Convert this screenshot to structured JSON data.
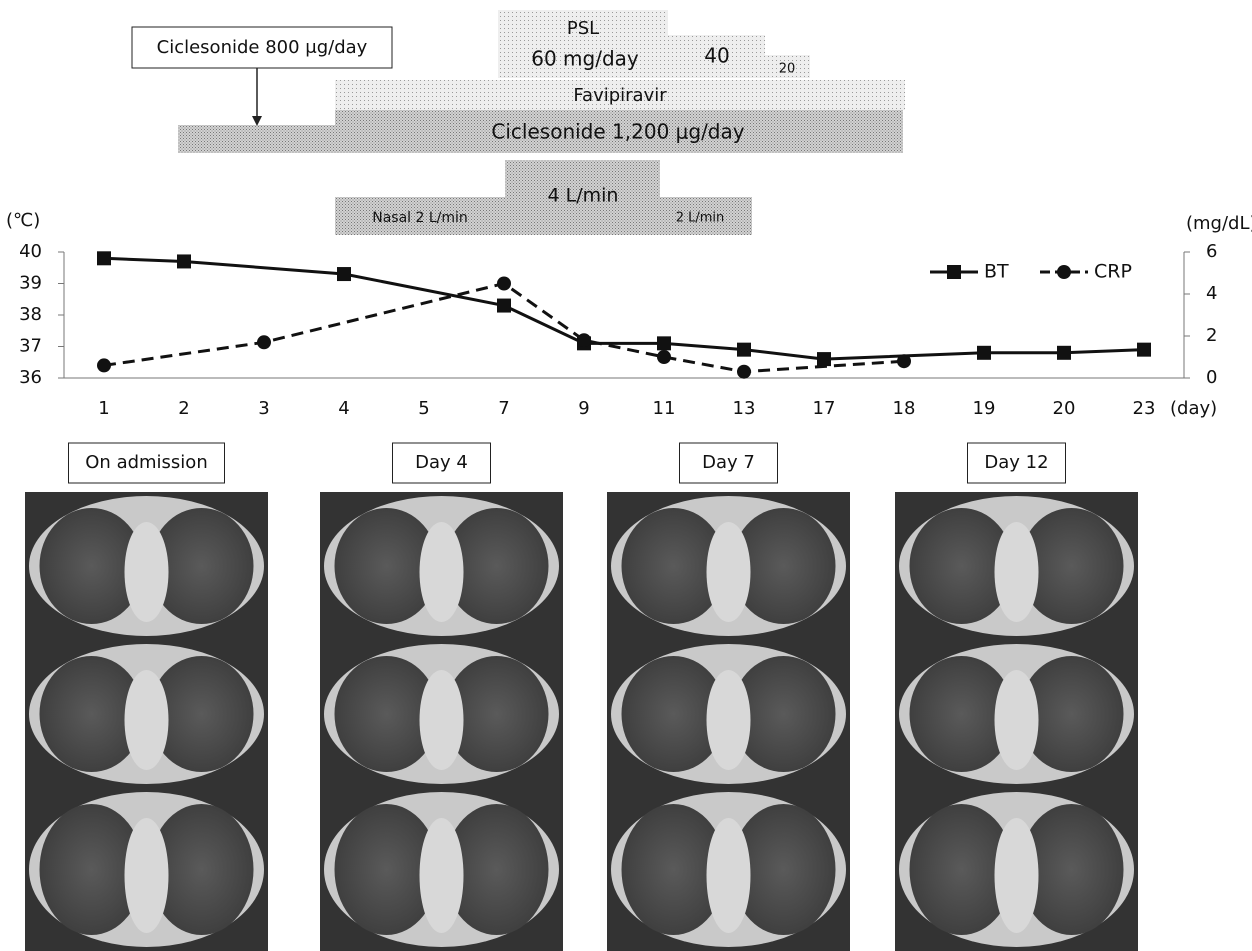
{
  "regimen": {
    "ciclesonide_initial": "Ciclesonide 800 μg/day",
    "psl_title": "PSL",
    "psl_60": "60 mg/day",
    "psl_40": "40",
    "psl_20": "20",
    "favipiravir": "Favipiravir",
    "ciclesonide_high": "Ciclesonide 1,200 μg/day",
    "oxygen_nasal": "Nasal 2 L/min",
    "oxygen_4": "4 L/min",
    "oxygen_2": "2 L/min"
  },
  "chart_data": {
    "type": "line",
    "y_label": "(℃)",
    "y2_label": "(mg/dL)",
    "x_label": "(day)",
    "categories": [
      "1",
      "2",
      "3",
      "4",
      "5",
      "7",
      "9",
      "11",
      "13",
      "17",
      "18",
      "19",
      "20",
      "23"
    ],
    "series": [
      {
        "name": "BT",
        "color": "#111111",
        "marker": "square",
        "dash": false,
        "values": [
          39.8,
          39.7,
          null,
          39.3,
          null,
          38.3,
          37.1,
          37.1,
          36.9,
          36.6,
          null,
          36.8,
          36.8,
          36.9
        ]
      },
      {
        "name": "CRP",
        "color": "#111111",
        "marker": "circle",
        "dash": true,
        "axis": "y2",
        "values": [
          0.6,
          null,
          1.7,
          null,
          null,
          4.5,
          1.8,
          1.0,
          0.3,
          null,
          0.8,
          null,
          null,
          null
        ]
      }
    ],
    "ylim": [
      36,
      40
    ],
    "yticks": [
      36,
      37,
      38,
      39,
      40
    ],
    "y2lim": [
      0,
      6
    ],
    "y2ticks": [
      0,
      2,
      4,
      6
    ],
    "legend": "upper right"
  },
  "ct_panels": {
    "labels": [
      "On admission",
      "Day 4",
      "Day 7",
      "Day 12"
    ]
  }
}
